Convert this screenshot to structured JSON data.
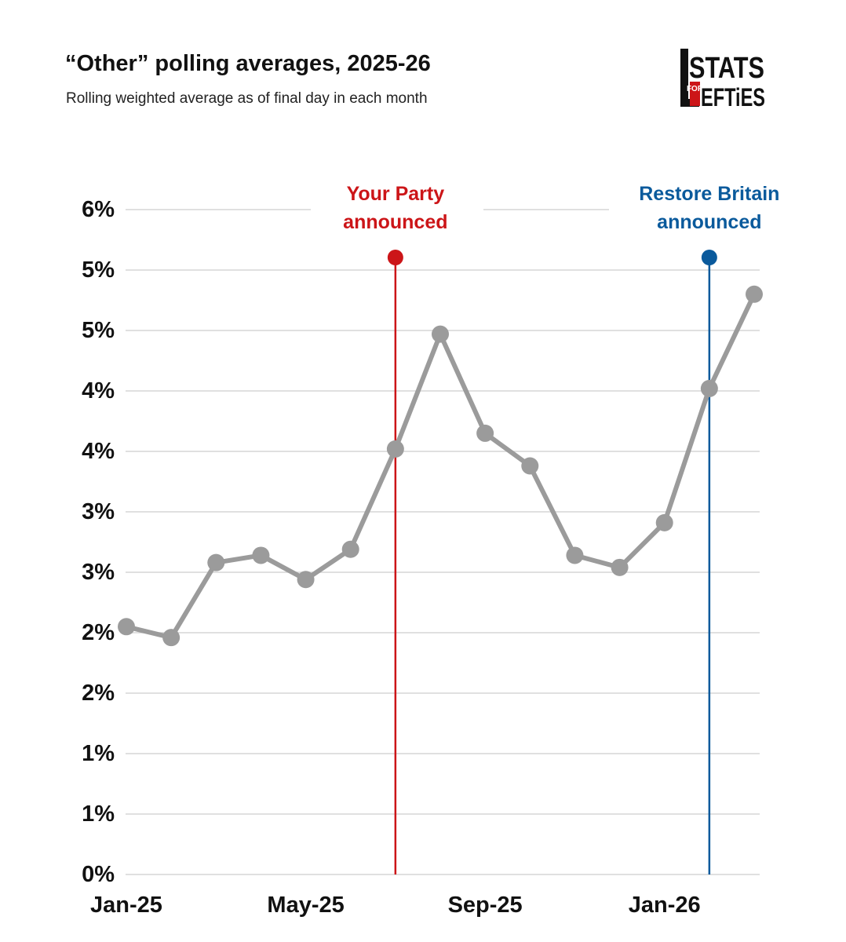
{
  "header": {
    "title": "“Other” polling averages, 2025-26",
    "subtitle": "Rolling weighted average as of final day in each month"
  },
  "logo": {
    "line1": "STATS",
    "for": "FOR",
    "line2": "EFTiES",
    "color": "#cc1518"
  },
  "colors": {
    "line": "#9b9b9b",
    "grid": "#d6d6d6",
    "your_party": "#cc1518",
    "restore_britain": "#0a5a9c"
  },
  "chart_data": {
    "type": "line",
    "title": "“Other” polling averages, 2025-26",
    "subtitle": "Rolling weighted average as of final day in each month",
    "xlabel": "",
    "ylabel": "",
    "x": [
      "Jan-25",
      "Feb-25",
      "Mar-25",
      "Apr-25",
      "May-25",
      "Jun-25",
      "Jul-25",
      "Aug-25",
      "Sep-25",
      "Oct-25",
      "Nov-25",
      "Dec-25",
      "Jan-26",
      "Feb-26",
      "Mar-26"
    ],
    "x_tick_labels": [
      {
        "index": 0,
        "label": "Jan-25"
      },
      {
        "index": 4,
        "label": "May-25"
      },
      {
        "index": 8,
        "label": "Sep-25"
      },
      {
        "index": 12,
        "label": "Jan-26"
      }
    ],
    "ylim": [
      0,
      5.5
    ],
    "y_ticks": [
      0,
      0.5,
      1,
      1.5,
      2,
      2.5,
      3,
      3.5,
      4,
      4.5,
      5,
      5.5
    ],
    "y_tick_labels": [
      "0%",
      "1%",
      "1%",
      "2%",
      "2%",
      "3%",
      "3%",
      "4%",
      "4%",
      "5%",
      "5%",
      "6%"
    ],
    "grid": true,
    "series": [
      {
        "name": "Other",
        "values": [
          2.05,
          1.96,
          2.58,
          2.64,
          2.44,
          2.69,
          3.52,
          4.47,
          3.65,
          3.38,
          2.64,
          2.54,
          2.91,
          4.02,
          4.8
        ]
      }
    ],
    "annotations": [
      {
        "label_line1": "Your Party",
        "label_line2": "announced",
        "x": 6,
        "color_key": "your_party"
      },
      {
        "label_line1": "Restore Britain",
        "label_line2": "announced",
        "x": 13,
        "color_key": "restore_britain"
      }
    ]
  }
}
